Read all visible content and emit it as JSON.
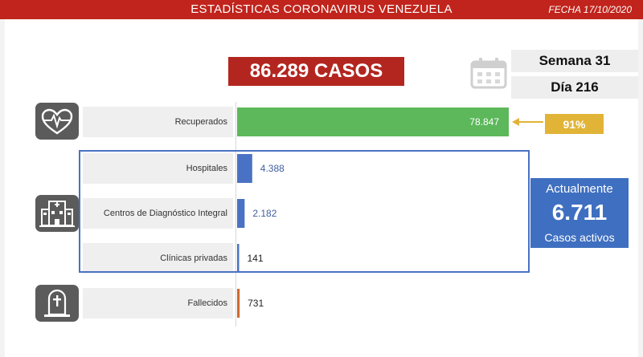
{
  "header": {
    "title": "ESTADÍSTICAS CORONAVIRUS VENEZUELA",
    "date": "FECHA 17/10/2020"
  },
  "total": {
    "label": "86.289 CASOS"
  },
  "week": "Semana 31",
  "day": "Día 216",
  "recovered_percent": "91%",
  "active": {
    "title": "Actualmente",
    "value": "6.711",
    "subtitle": "Casos activos"
  },
  "icons": {
    "recovered": "heart-pulse-icon",
    "hospitalized": "hospital-icon",
    "deceased": "tombstone-icon",
    "calendar": "calendar-icon"
  },
  "colors": {
    "header": "#c0241c",
    "total_box": "#b32620",
    "recovered_bar": "#5cb85a",
    "hospital_bar": "#4a72c4",
    "deceased_bar": "#d0692f",
    "percent_badge": "#e1b437",
    "active_box": "#3f6fc0"
  },
  "chart_data": {
    "type": "bar",
    "orientation": "horizontal",
    "categories": [
      "Recuperados",
      "Hospitales",
      "Centros de Diagnóstico Integral",
      "Clínicas privadas",
      "Fallecidos"
    ],
    "values": [
      78847,
      4388,
      2182,
      141,
      731
    ],
    "value_labels": [
      "78.847",
      "4.388",
      "2.182",
      "141",
      "731"
    ],
    "bar_colors": [
      "#5cb85a",
      "#4a72c4",
      "#4a72c4",
      "#4a72c4",
      "#d0692f"
    ],
    "grid": false,
    "legend": "none"
  }
}
